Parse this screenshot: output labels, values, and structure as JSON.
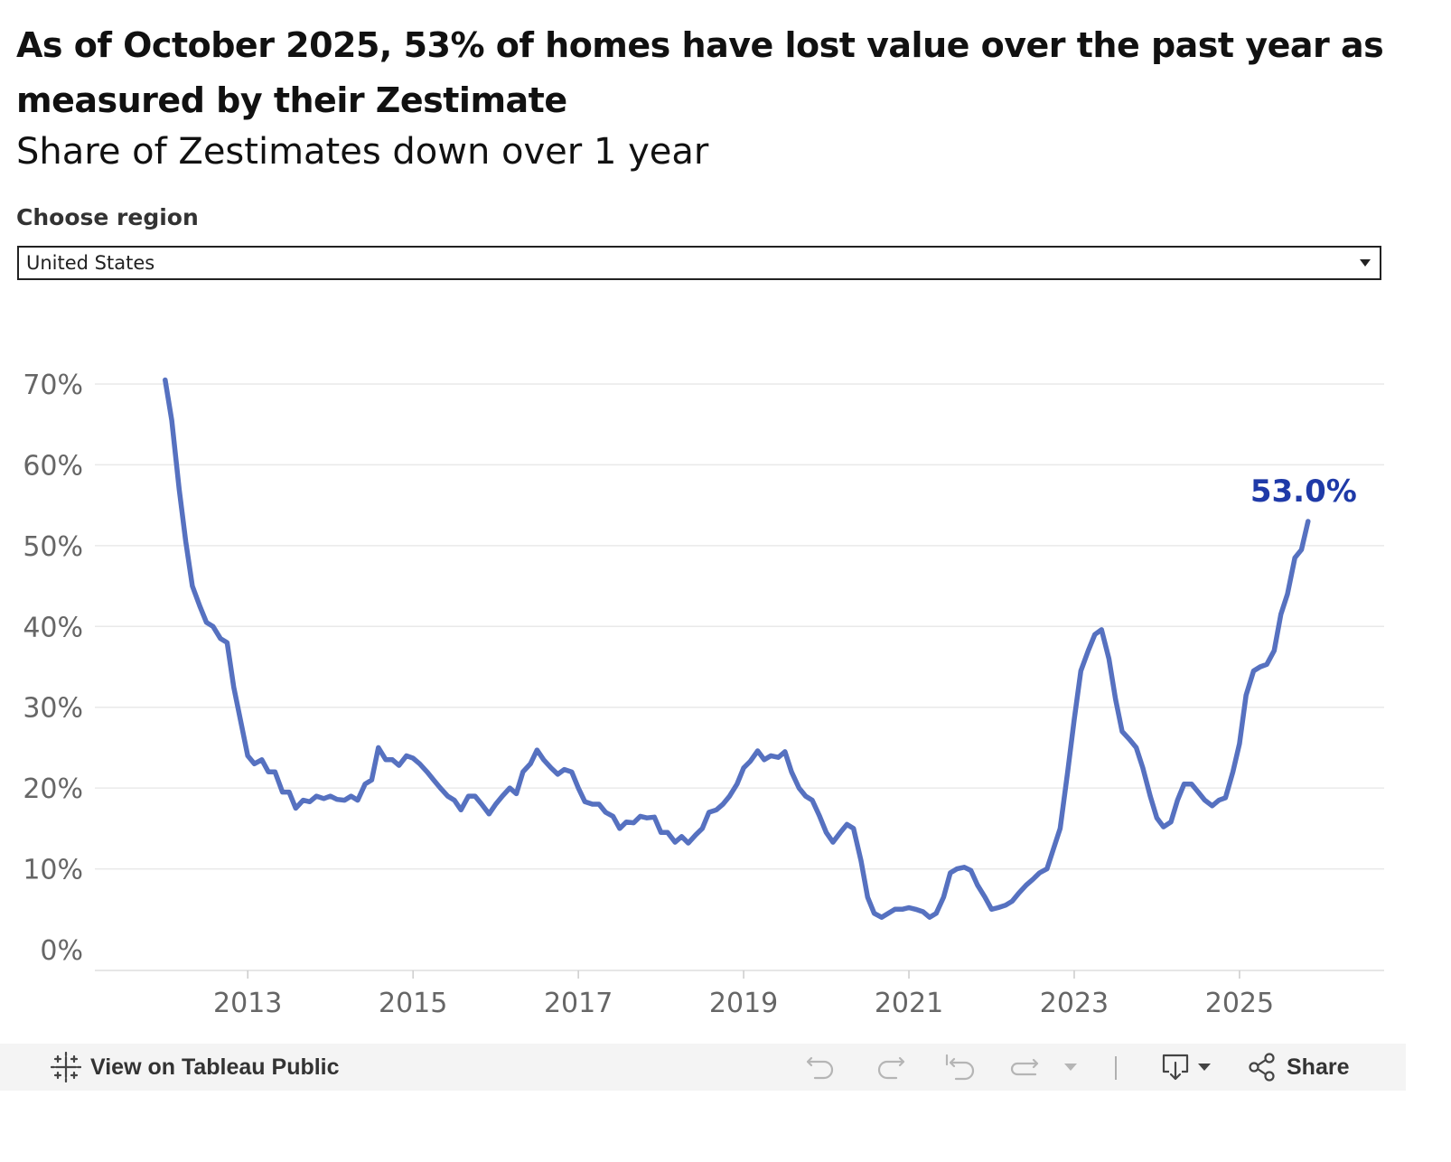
{
  "header": {
    "title": "As of October 2025, 53% of homes have lost value over the past year as measured by their Zestimate",
    "subtitle": "Share of Zestimates down over 1 year"
  },
  "filter": {
    "label": "Choose region",
    "selected": "United States"
  },
  "chart_data": {
    "type": "line",
    "title": "Share of Zestimates down over 1 year",
    "xlabel": "",
    "ylabel": "",
    "ylim": [
      0,
      70
    ],
    "xlim": [
      2011.15,
      2026.75
    ],
    "grid": true,
    "y_ticks": [
      "0%",
      "10%",
      "20%",
      "30%",
      "40%",
      "50%",
      "60%",
      "70%"
    ],
    "x_ticks": [
      "2013",
      "2015",
      "2017",
      "2019",
      "2021",
      "2023",
      "2025"
    ],
    "annotation": {
      "text": "53.0%",
      "x": 2025.83,
      "y": 53.0
    },
    "series": [
      {
        "name": "United States",
        "color": "#5671c0",
        "x": [
          2012.0,
          2012.08,
          2012.17,
          2012.25,
          2012.33,
          2012.42,
          2012.5,
          2012.58,
          2012.67,
          2012.75,
          2012.83,
          2012.92,
          2013.0,
          2013.08,
          2013.17,
          2013.25,
          2013.33,
          2013.42,
          2013.5,
          2013.58,
          2013.67,
          2013.75,
          2013.83,
          2013.92,
          2014.0,
          2014.08,
          2014.17,
          2014.25,
          2014.33,
          2014.42,
          2014.5,
          2014.58,
          2014.67,
          2014.75,
          2014.83,
          2014.92,
          2015.0,
          2015.08,
          2015.17,
          2015.25,
          2015.33,
          2015.42,
          2015.5,
          2015.58,
          2015.67,
          2015.75,
          2015.83,
          2015.92,
          2016.0,
          2016.08,
          2016.17,
          2016.25,
          2016.33,
          2016.42,
          2016.5,
          2016.58,
          2016.67,
          2016.75,
          2016.83,
          2016.92,
          2017.0,
          2017.08,
          2017.17,
          2017.25,
          2017.33,
          2017.42,
          2017.5,
          2017.58,
          2017.67,
          2017.75,
          2017.83,
          2017.92,
          2018.0,
          2018.08,
          2018.17,
          2018.25,
          2018.33,
          2018.42,
          2018.5,
          2018.58,
          2018.67,
          2018.75,
          2018.83,
          2018.92,
          2019.0,
          2019.08,
          2019.17,
          2019.25,
          2019.33,
          2019.42,
          2019.5,
          2019.58,
          2019.67,
          2019.75,
          2019.83,
          2019.92,
          2020.0,
          2020.08,
          2020.17,
          2020.25,
          2020.33,
          2020.42,
          2020.5,
          2020.58,
          2020.67,
          2020.75,
          2020.83,
          2020.92,
          2021.0,
          2021.08,
          2021.17,
          2021.25,
          2021.33,
          2021.42,
          2021.5,
          2021.58,
          2021.67,
          2021.75,
          2021.83,
          2021.92,
          2022.0,
          2022.08,
          2022.17,
          2022.25,
          2022.33,
          2022.42,
          2022.5,
          2022.58,
          2022.67,
          2022.75,
          2022.83,
          2022.92,
          2023.0,
          2023.08,
          2023.17,
          2023.25,
          2023.33,
          2023.42,
          2023.5,
          2023.58,
          2023.67,
          2023.75,
          2023.83,
          2023.92,
          2024.0,
          2024.08,
          2024.17,
          2024.25,
          2024.33,
          2024.42,
          2024.5,
          2024.58,
          2024.67,
          2024.75,
          2024.83,
          2024.92,
          2025.0,
          2025.08,
          2025.17,
          2025.25,
          2025.33,
          2025.42,
          2025.5,
          2025.58,
          2025.67,
          2025.75,
          2025.83
        ],
        "values": [
          70.5,
          65.5,
          57.0,
          50.5,
          45.0,
          42.5,
          40.5,
          40.0,
          38.5,
          38.0,
          32.5,
          28.0,
          24.0,
          23.0,
          23.5,
          22.0,
          22.0,
          19.5,
          19.5,
          17.5,
          18.5,
          18.3,
          19.0,
          18.7,
          19.0,
          18.6,
          18.5,
          19.0,
          18.5,
          20.5,
          21.0,
          25.0,
          23.5,
          23.5,
          22.8,
          24.0,
          23.7,
          23.0,
          22.0,
          21.0,
          20.0,
          19.0,
          18.5,
          17.3,
          19.0,
          19.0,
          18.0,
          16.8,
          18.0,
          19.0,
          20.0,
          19.3,
          22.0,
          23.0,
          24.7,
          23.5,
          22.5,
          21.7,
          22.3,
          22.0,
          20.0,
          18.3,
          18.0,
          18.0,
          17.0,
          16.5,
          15.0,
          15.8,
          15.7,
          16.5,
          16.3,
          16.4,
          14.5,
          14.5,
          13.3,
          14.0,
          13.2,
          14.2,
          15.0,
          17.0,
          17.3,
          18.0,
          19.0,
          20.5,
          22.5,
          23.3,
          24.6,
          23.5,
          24.0,
          23.8,
          24.5,
          22.0,
          20.0,
          19.0,
          18.5,
          16.5,
          14.5,
          13.3,
          14.5,
          15.5,
          15.0,
          11.0,
          6.5,
          4.5,
          4.0,
          4.5,
          5.0,
          5.0,
          5.2,
          5.0,
          4.7,
          4.0,
          4.5,
          6.5,
          9.5,
          10.0,
          10.2,
          9.8,
          8.0,
          6.5,
          5.0,
          5.2,
          5.5,
          6.0,
          7.0,
          8.0,
          8.7,
          9.5,
          10.0,
          12.5,
          15.0,
          22.0,
          28.5,
          34.5,
          37.0,
          39.0,
          39.6,
          36.0,
          31.0,
          27.0,
          26.0,
          25.0,
          22.5,
          19.0,
          16.3,
          15.2,
          15.8,
          18.5,
          20.5,
          20.5,
          19.5,
          18.5,
          17.8,
          18.5,
          18.8,
          22.0,
          25.5,
          31.5,
          34.5,
          35.0,
          35.3,
          37.0,
          41.5,
          44.0,
          48.5,
          49.5,
          53.0
        ]
      }
    ]
  },
  "toolbar": {
    "view_label": "View on Tableau Public",
    "share_label": "Share"
  }
}
